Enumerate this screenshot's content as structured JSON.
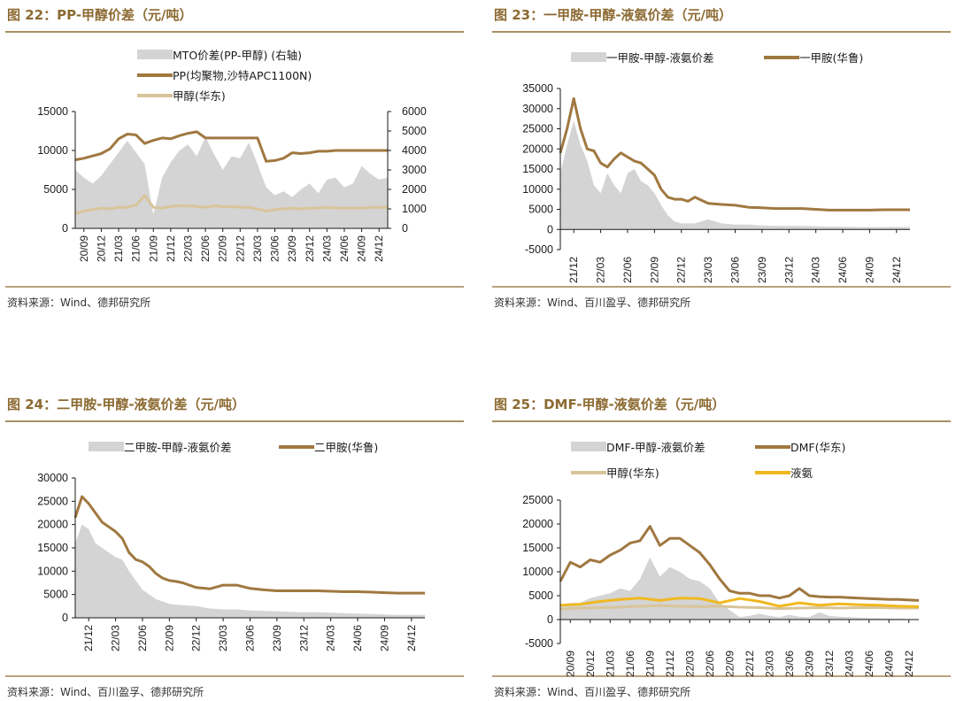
{
  "colors": {
    "title": "#8c6a32",
    "rule": "#8c6a32",
    "spread_fill": "#d4d4d4",
    "product_line": "#a07840",
    "methanol_line": "#d9c49a",
    "ammonia_line": "#f0b820",
    "axis": "#1a1a1a"
  },
  "chart_data": [
    {
      "type": "line",
      "title": "图 22：PP-甲醇价差（元/吨）",
      "source": "资料来源：Wind、德邦研究所",
      "legend": [
        "MTO价差(PP-甲醇) (右轴)",
        "PP(均聚物,沙特APC1100N)",
        "甲醇(华东)"
      ],
      "x_ticks": [
        "20/09",
        "20/12",
        "21/03",
        "21/06",
        "21/09",
        "21/12",
        "22/03",
        "22/06",
        "22/09",
        "22/12",
        "23/03",
        "23/06",
        "23/09",
        "23/12",
        "24/03",
        "24/06",
        "24/09",
        "24/12"
      ],
      "y_left_ticks": [
        "15000",
        "10000",
        "5000",
        "0"
      ],
      "y_right_ticks": [
        "6000",
        "5000",
        "4000",
        "3000",
        "2000",
        "1000",
        "0"
      ],
      "ylim": [
        0,
        15000
      ],
      "y2lim": [
        0,
        6000
      ],
      "series": [
        {
          "name": "MTO价差(PP-甲醇) (右轴)",
          "style": "area",
          "axis": "right",
          "x": [
            0,
            0.5,
            1,
            1.5,
            2,
            2.5,
            3,
            3.5,
            4,
            4.5,
            5,
            5.5,
            6,
            6.5,
            7,
            7.5,
            8,
            8.5,
            9,
            9.5,
            10,
            10.5,
            11,
            11.5,
            12,
            12.5,
            13,
            13.5,
            14,
            14.5,
            15,
            15.5,
            16,
            16.5,
            17,
            17.5,
            18
          ],
          "values": [
            3000,
            2600,
            2300,
            2700,
            3300,
            3900,
            4500,
            3900,
            3300,
            700,
            2600,
            3400,
            4000,
            4300,
            3700,
            4700,
            3800,
            3000,
            3700,
            3600,
            4400,
            3300,
            2100,
            1700,
            1900,
            1600,
            2000,
            2300,
            1800,
            2500,
            2600,
            2100,
            2300,
            3200,
            2800,
            2500,
            2600
          ]
        },
        {
          "name": "PP(均聚物,沙特APC1100N)",
          "style": "line",
          "axis": "left",
          "x": [
            0,
            0.5,
            1,
            1.5,
            2,
            2.5,
            3,
            3.5,
            4,
            4.5,
            5,
            5.5,
            6,
            6.5,
            7,
            7.5,
            8,
            8.5,
            9,
            9.5,
            10,
            10.5,
            11,
            11.5,
            12,
            12.5,
            13,
            13.5,
            14,
            14.5,
            15,
            15.5,
            16,
            16.5,
            17,
            17.5,
            18
          ],
          "values": [
            8800,
            9000,
            9300,
            9600,
            10200,
            11500,
            12100,
            12000,
            10900,
            11300,
            11600,
            11500,
            11900,
            12200,
            12400,
            11600,
            11600,
            11600,
            11600,
            11600,
            11600,
            11600,
            8600,
            8700,
            9000,
            9700,
            9600,
            9700,
            9900,
            9900,
            10000,
            10000,
            10000,
            10000,
            10000,
            10000,
            10000
          ]
        },
        {
          "name": "甲醇(华东)",
          "style": "line",
          "axis": "left",
          "x": [
            0,
            0.5,
            1,
            1.5,
            2,
            2.5,
            3,
            3.5,
            4,
            4.5,
            5,
            5.5,
            6,
            6.5,
            7,
            7.5,
            8,
            8.5,
            9,
            9.5,
            10,
            10.5,
            11,
            11.5,
            12,
            12.5,
            13,
            13.5,
            14,
            14.5,
            15,
            15.5,
            16,
            16.5,
            17,
            17.5,
            18
          ],
          "values": [
            1900,
            2200,
            2400,
            2600,
            2500,
            2700,
            2700,
            3000,
            4200,
            2700,
            2600,
            2800,
            2900,
            2900,
            2800,
            2700,
            2900,
            2800,
            2800,
            2700,
            2700,
            2500,
            2200,
            2400,
            2500,
            2600,
            2500,
            2600,
            2600,
            2700,
            2600,
            2600,
            2600,
            2600,
            2700,
            2700,
            2700
          ]
        }
      ]
    },
    {
      "type": "line",
      "title": "图 23：一甲胺-甲醇-液氨价差（元/吨）",
      "source": "资料来源：Wind、百川盈孚、德邦研究所",
      "legend": [
        "一甲胺-甲醇-液氨价差",
        "一甲胺(华鲁)"
      ],
      "x_ticks": [
        "21/12",
        "22/03",
        "22/06",
        "22/09",
        "22/12",
        "23/03",
        "23/06",
        "23/09",
        "23/12",
        "24/03",
        "24/06",
        "24/09",
        "24/12"
      ],
      "y_ticks": [
        "35000",
        "30000",
        "25000",
        "20000",
        "15000",
        "10000",
        "5000",
        "0",
        "-5000"
      ],
      "ylim": [
        -5000,
        35000
      ],
      "series": [
        {
          "name": "一甲胺-甲醇-液氨价差",
          "style": "area",
          "x": [
            0,
            0.25,
            0.5,
            0.75,
            1,
            1.25,
            1.5,
            1.75,
            2,
            2.25,
            2.5,
            2.75,
            3,
            3.25,
            3.5,
            3.75,
            4,
            4.25,
            4.5,
            4.75,
            5,
            5.5,
            6,
            6.5,
            7,
            7.5,
            8,
            8.5,
            9,
            9.5,
            10,
            10.5,
            11,
            11.5,
            12,
            12.5,
            13
          ],
          "values": [
            14000,
            21000,
            27000,
            21000,
            17000,
            11000,
            9000,
            14000,
            11000,
            9000,
            14000,
            15000,
            12000,
            11000,
            9000,
            6000,
            3500,
            2000,
            1500,
            1500,
            1500,
            2500,
            1500,
            1200,
            1200,
            1000,
            900,
            900,
            900,
            800,
            700,
            700,
            600,
            600,
            600,
            600,
            600
          ]
        },
        {
          "name": "一甲胺(华鲁)",
          "style": "line",
          "x": [
            0,
            0.25,
            0.5,
            0.75,
            1,
            1.25,
            1.5,
            1.75,
            2,
            2.25,
            2.5,
            2.75,
            3,
            3.25,
            3.5,
            3.75,
            4,
            4.25,
            4.5,
            4.75,
            5,
            5.5,
            6,
            6.5,
            7,
            7.5,
            8,
            8.5,
            9,
            9.5,
            10,
            10.5,
            11,
            11.5,
            12,
            12.5,
            13
          ],
          "values": [
            19000,
            25000,
            32500,
            25000,
            20000,
            19500,
            16500,
            15500,
            17500,
            19000,
            18000,
            17000,
            16500,
            15000,
            13500,
            10000,
            8000,
            7500,
            7500,
            7000,
            8000,
            6500,
            6200,
            6000,
            5500,
            5400,
            5200,
            5200,
            5200,
            5000,
            4800,
            4800,
            4800,
            4800,
            4900,
            4900,
            4900
          ]
        }
      ]
    },
    {
      "type": "line",
      "title": "图 24：二甲胺-甲醇-液氨价差（元/吨）",
      "source": "资料来源：Wind、百川盈孚、德邦研究所",
      "legend": [
        "二甲胺-甲醇-液氨价差",
        "二甲胺(华鲁)"
      ],
      "x_ticks": [
        "21/12",
        "22/03",
        "22/06",
        "22/09",
        "22/12",
        "23/03",
        "23/06",
        "23/09",
        "23/12",
        "24/03",
        "24/06",
        "24/09",
        "24/12"
      ],
      "y_ticks": [
        "30000",
        "25000",
        "20000",
        "15000",
        "10000",
        "5000",
        "0"
      ],
      "ylim": [
        0,
        30000
      ],
      "series": [
        {
          "name": "二甲胺-甲醇-液氨价差",
          "style": "area",
          "x": [
            0,
            0.25,
            0.5,
            0.75,
            1,
            1.25,
            1.5,
            1.75,
            2,
            2.25,
            2.5,
            2.75,
            3,
            3.25,
            3.5,
            3.75,
            4,
            4.5,
            5,
            5.5,
            6,
            6.5,
            7,
            7.5,
            8,
            8.5,
            9,
            9.5,
            10,
            10.5,
            11,
            11.5,
            12,
            12.5,
            13
          ],
          "values": [
            16000,
            20000,
            19000,
            16000,
            15000,
            14000,
            13000,
            12500,
            10000,
            8000,
            6000,
            5000,
            4000,
            3500,
            3000,
            2800,
            2700,
            2500,
            2000,
            1800,
            1800,
            1600,
            1500,
            1400,
            1300,
            1200,
            1200,
            1100,
            1000,
            900,
            800,
            700,
            600,
            600,
            600
          ]
        },
        {
          "name": "二甲胺(华鲁)",
          "style": "line",
          "x": [
            0,
            0.25,
            0.5,
            0.75,
            1,
            1.25,
            1.5,
            1.75,
            2,
            2.25,
            2.5,
            2.75,
            3,
            3.25,
            3.5,
            3.75,
            4,
            4.5,
            5,
            5.5,
            6,
            6.5,
            7,
            7.5,
            8,
            8.5,
            9,
            9.5,
            10,
            10.5,
            11,
            11.5,
            12,
            12.5,
            13
          ],
          "values": [
            21500,
            26000,
            24500,
            22500,
            20500,
            19500,
            18500,
            17000,
            14000,
            12500,
            12000,
            11000,
            9500,
            8500,
            8000,
            7800,
            7500,
            6500,
            6200,
            7000,
            7000,
            6300,
            6000,
            5800,
            5800,
            5800,
            5800,
            5700,
            5600,
            5600,
            5500,
            5400,
            5300,
            5300,
            5300
          ]
        }
      ]
    },
    {
      "type": "line",
      "title": "图 25：DMF-甲醇-液氨价差（元/吨）",
      "source": "资料来源：Wind、百川盈孚、德邦研究所",
      "legend": [
        "DMF-甲醇-液氨价差",
        "DMF(华东)",
        "甲醇(华东)",
        "液氨"
      ],
      "x_ticks": [
        "20/09",
        "20/12",
        "21/03",
        "21/06",
        "21/09",
        "21/12",
        "22/03",
        "22/06",
        "22/09",
        "22/12",
        "23/03",
        "23/06",
        "23/09",
        "23/12",
        "24/03",
        "24/06",
        "24/09",
        "24/12"
      ],
      "y_ticks": [
        "25000",
        "20000",
        "15000",
        "10000",
        "5000",
        "0",
        "-5000"
      ],
      "ylim": [
        -5000,
        25000
      ],
      "series": [
        {
          "name": "DMF-甲醇-液氨价差",
          "style": "area",
          "x": [
            0,
            0.5,
            1,
            1.5,
            2,
            2.5,
            3,
            3.5,
            4,
            4.5,
            5,
            5.5,
            6,
            6.5,
            7,
            7.5,
            8,
            8.5,
            9,
            9.5,
            10,
            10.5,
            11,
            11.5,
            12,
            12.5,
            13,
            13.5,
            14,
            14.5,
            15,
            15.5,
            16,
            16.5,
            17,
            17.5,
            18
          ],
          "values": [
            3000,
            3500,
            3500,
            4500,
            5000,
            5500,
            6500,
            6000,
            8500,
            13000,
            9000,
            11000,
            10000,
            8500,
            8000,
            6500,
            3500,
            2000,
            500,
            800,
            1200,
            800,
            500,
            1000,
            600,
            500,
            1500,
            800,
            600,
            500,
            400,
            300,
            300,
            200,
            200,
            100,
            0
          ]
        },
        {
          "name": "DMF(华东)",
          "style": "line",
          "x": [
            0,
            0.5,
            1,
            1.5,
            2,
            2.5,
            3,
            3.5,
            4,
            4.5,
            5,
            5.5,
            6,
            6.5,
            7,
            7.5,
            8,
            8.5,
            9,
            9.5,
            10,
            10.5,
            11,
            11.5,
            12,
            12.5,
            13,
            13.5,
            14,
            14.5,
            15,
            15.5,
            16,
            16.5,
            17,
            17.5,
            18
          ],
          "values": [
            8000,
            12000,
            11000,
            12500,
            12000,
            13500,
            14500,
            16000,
            16500,
            19500,
            15500,
            17000,
            17000,
            15500,
            14000,
            11500,
            8500,
            6000,
            5500,
            5500,
            5000,
            5000,
            4500,
            5000,
            6500,
            5000,
            4800,
            4700,
            4700,
            4600,
            4500,
            4400,
            4300,
            4200,
            4200,
            4100,
            4000
          ]
        },
        {
          "name": "甲醇(华东)",
          "style": "line",
          "x": [
            0,
            1,
            2,
            3,
            4,
            5,
            6,
            7,
            8,
            9,
            10,
            11,
            12,
            13,
            14,
            15,
            16,
            17,
            18
          ],
          "values": [
            2200,
            2400,
            2500,
            2600,
            2800,
            2900,
            2800,
            2700,
            2800,
            2600,
            2500,
            2300,
            2400,
            2500,
            2400,
            2500,
            2500,
            2400,
            2400
          ]
        },
        {
          "name": "液氨",
          "style": "line",
          "x": [
            0,
            1,
            2,
            3,
            4,
            5,
            6,
            7,
            8,
            9,
            10,
            11,
            12,
            13,
            14,
            15,
            16,
            17,
            18
          ],
          "values": [
            3000,
            3200,
            3800,
            4200,
            4500,
            4000,
            4500,
            4400,
            3500,
            4400,
            3800,
            2800,
            3500,
            3000,
            3300,
            3100,
            3000,
            2800,
            2700
          ]
        }
      ]
    }
  ]
}
